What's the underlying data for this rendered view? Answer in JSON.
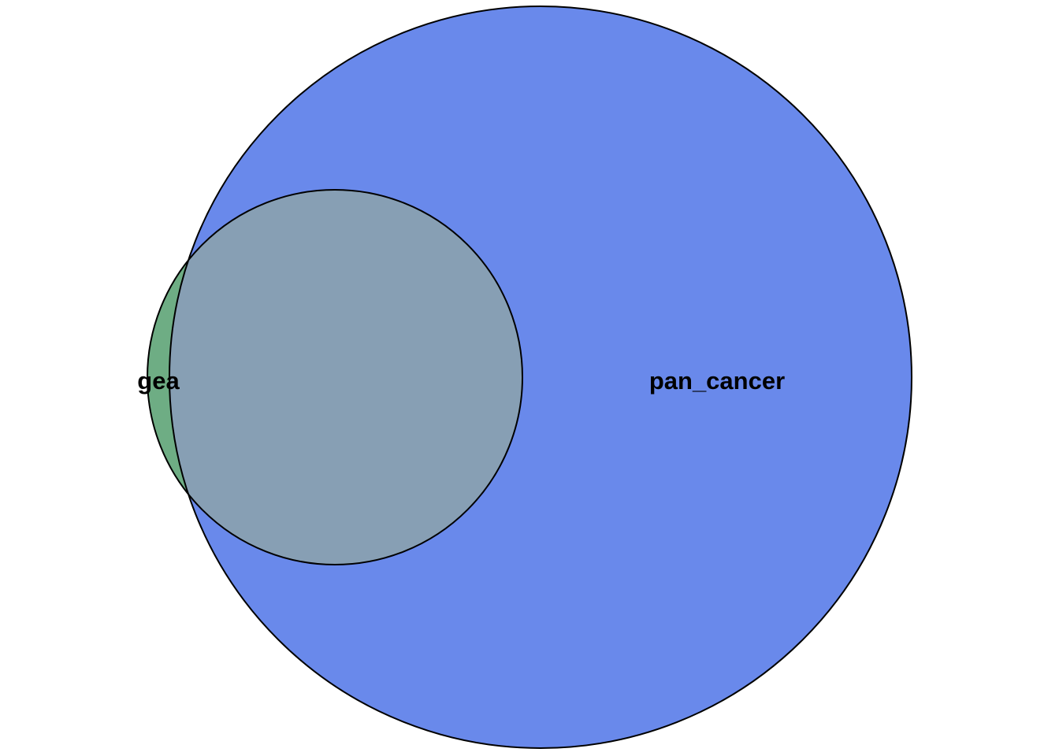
{
  "diagram": {
    "type": "venn",
    "sets": [
      {
        "id": "pan_cancer",
        "label": "pan_cancer",
        "color": "#6989EB"
      },
      {
        "id": "gea",
        "label": "gea",
        "color": "#6EAD84"
      }
    ],
    "overlap_color": "#879FB4",
    "outline_color": "#000000",
    "background": "#FFFFFF"
  }
}
